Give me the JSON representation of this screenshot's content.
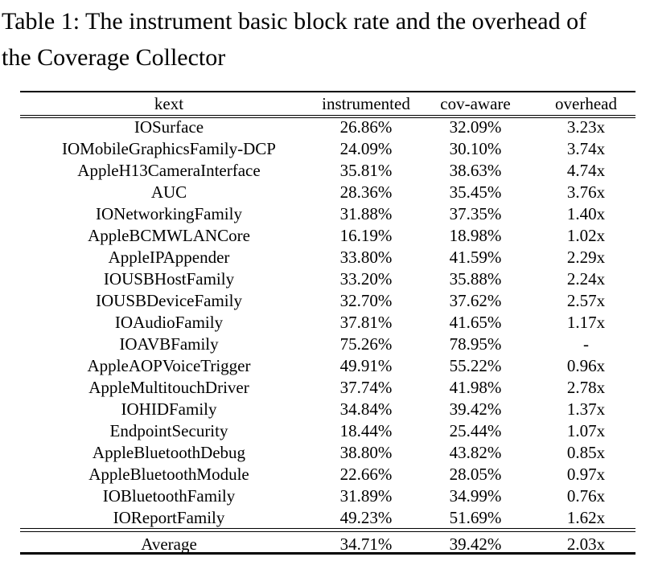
{
  "caption": {
    "line1": "Table 1: The instrument basic block rate and the overhead of",
    "line2": "the Coverage Collector"
  },
  "table": {
    "columns": [
      "kext",
      "instrumented",
      "cov-aware",
      "overhead"
    ],
    "rows": [
      [
        "IOSurface",
        "26.86%",
        "32.09%",
        "3.23x"
      ],
      [
        "IOMobileGraphicsFamily-DCP",
        "24.09%",
        "30.10%",
        "3.74x"
      ],
      [
        "AppleH13CameraInterface",
        "35.81%",
        "38.63%",
        "4.74x"
      ],
      [
        "AUC",
        "28.36%",
        "35.45%",
        "3.76x"
      ],
      [
        "IONetworkingFamily",
        "31.88%",
        "37.35%",
        "1.40x"
      ],
      [
        "AppleBCMWLANCore",
        "16.19%",
        "18.98%",
        "1.02x"
      ],
      [
        "AppleIPAppender",
        "33.80%",
        "41.59%",
        "2.29x"
      ],
      [
        "IOUSBHostFamily",
        "33.20%",
        "35.88%",
        "2.24x"
      ],
      [
        "IOUSBDeviceFamily",
        "32.70%",
        "37.62%",
        "2.57x"
      ],
      [
        "IOAudioFamily",
        "37.81%",
        "41.65%",
        "1.17x"
      ],
      [
        "IOAVBFamily",
        "75.26%",
        "78.95%",
        "-"
      ],
      [
        "AppleAOPVoiceTrigger",
        "49.91%",
        "55.22%",
        "0.96x"
      ],
      [
        "AppleMultitouchDriver",
        "37.74%",
        "41.98%",
        "2.78x"
      ],
      [
        "IOHIDFamily",
        "34.84%",
        "39.42%",
        "1.37x"
      ],
      [
        "EndpointSecurity",
        "18.44%",
        "25.44%",
        "1.07x"
      ],
      [
        "AppleBluetoothDebug",
        "38.80%",
        "43.82%",
        "0.85x"
      ],
      [
        "AppleBluetoothModule",
        "22.66%",
        "28.05%",
        "0.97x"
      ],
      [
        "IOBluetoothFamily",
        "31.89%",
        "34.99%",
        "0.76x"
      ],
      [
        "IOReportFamily",
        "49.23%",
        "51.69%",
        "1.62x"
      ]
    ],
    "average_row": [
      "Average",
      "34.71%",
      "39.42%",
      "2.03x"
    ]
  },
  "colors": {
    "text": "#000000",
    "background": "#ffffff",
    "rule": "#000000"
  }
}
